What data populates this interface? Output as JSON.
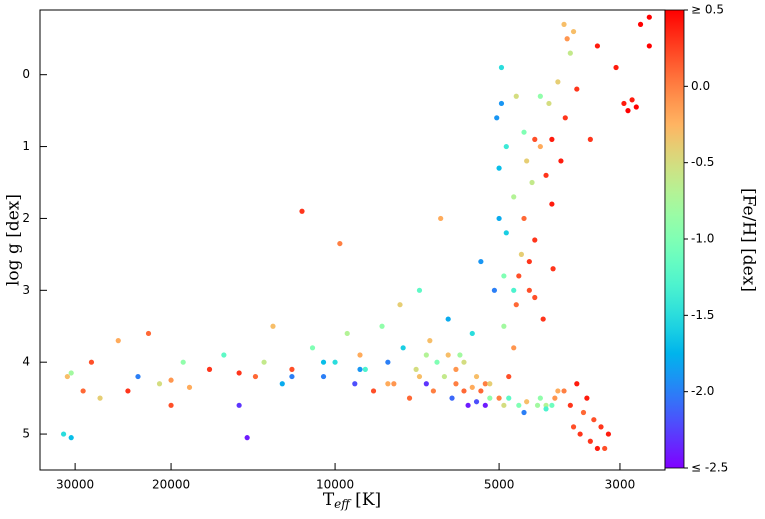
{
  "chart_data": {
    "type": "scatter",
    "xlabel": {
      "base": "T",
      "subscript": "eff",
      "rest": " [K]"
    },
    "ylabel": "log g [dex]",
    "colorbar_label": "[Fe/H] [dex]",
    "xscale": "log",
    "xlim": [
      34800,
      2480
    ],
    "ylim": [
      -0.9,
      5.5
    ],
    "xticks": [
      30000,
      20000,
      10000,
      5000,
      3000
    ],
    "yticks": [
      0,
      1,
      2,
      3,
      4,
      5
    ],
    "colormap": "rainbow",
    "clim": [
      -2.5,
      0.5
    ],
    "cticks": [
      {
        "value": 0.5,
        "label": "≥ 0.5"
      },
      {
        "value": 0,
        "label": "0.0"
      },
      -0.5,
      {
        "value": -1,
        "label": "-1.0"
      },
      -1.5,
      {
        "value": -2,
        "label": "-2.0"
      },
      {
        "value": -2.5,
        "label": "≤ -2.5"
      }
    ],
    "x": [
      31000,
      30500,
      29000,
      31500,
      30500,
      28000,
      27000,
      25000,
      24000,
      23000,
      22000,
      21000,
      20000,
      19000,
      18500,
      17000,
      16000,
      15000,
      14500,
      14000,
      13500,
      13000,
      12500,
      12000,
      11500,
      11000,
      10500,
      10000,
      9800,
      9500,
      9200,
      9000,
      8800,
      8500,
      8200,
      8000,
      7800,
      7600,
      7500,
      7300,
      7100,
      7000,
      6800,
      6700,
      6600,
      6500,
      6400,
      6300,
      6200,
      6100,
      6000,
      5900,
      5800,
      5700,
      5600,
      5500,
      5400,
      5300,
      5200,
      5100,
      5000,
      4950,
      4900,
      4850,
      4800,
      4700,
      4650,
      4600,
      4550,
      4500,
      4450,
      4400,
      4350,
      4300,
      4250,
      4200,
      4150,
      4100,
      4050,
      4000,
      3980,
      3950,
      3900,
      3850,
      3800,
      3780,
      3750,
      3700,
      3650,
      3600,
      3550,
      3500,
      3450,
      3400,
      3350,
      3300,
      3250,
      3200,
      3150,
      3700,
      3650,
      3400,
      3300,
      2950,
      2900,
      2850,
      2800,
      2750,
      2650,
      2650,
      3050,
      3600,
      5600,
      5400,
      5200,
      5000,
      4800,
      6000,
      5800,
      6200,
      4900,
      4700,
      4600,
      4500,
      4450,
      4300,
      4200,
      4100,
      4000,
      4400,
      4300,
      4700,
      4900,
      5000,
      4850,
      4100,
      4000,
      4500,
      5300,
      5500,
      4200,
      3900,
      5050,
      4950,
      3800,
      4650,
      7000,
      8000,
      6800,
      12000,
      10500,
      9000,
      15000,
      20000
    ],
    "y": [
      4.2,
      4.15,
      4.4,
      5.0,
      5.05,
      4.0,
      4.5,
      3.7,
      4.4,
      4.2,
      3.6,
      4.3,
      4.6,
      4.0,
      4.35,
      4.1,
      3.9,
      4.6,
      5.05,
      4.2,
      4.0,
      3.5,
      4.3,
      4.1,
      1.9,
      3.8,
      4.2,
      4.0,
      2.35,
      3.6,
      4.3,
      3.9,
      4.1,
      4.4,
      3.5,
      4.0,
      4.3,
      3.2,
      3.8,
      4.5,
      4.1,
      3.0,
      4.3,
      3.7,
      4.4,
      4.0,
      2.0,
      4.2,
      3.4,
      4.5,
      4.1,
      3.9,
      4.4,
      4.6,
      3.6,
      4.2,
      2.6,
      4.3,
      4.5,
      3.0,
      1.3,
      0.4,
      4.6,
      2.2,
      4.5,
      1.7,
      3.2,
      4.6,
      2.5,
      0.8,
      4.55,
      3.0,
      1.5,
      2.3,
      4.6,
      1.0,
      3.4,
      4.6,
      0.4,
      1.8,
      2.7,
      4.5,
      0.1,
      1.2,
      4.4,
      0.6,
      -0.5,
      4.6,
      4.9,
      4.3,
      5.0,
      4.7,
      4.5,
      5.1,
      4.8,
      5.2,
      4.9,
      5.2,
      5.0,
      -0.3,
      -0.6,
      0.9,
      -0.4,
      0.4,
      0.5,
      0.35,
      0.45,
      -0.7,
      -0.8,
      -0.4,
      -0.1,
      0.2,
      4.35,
      4.4,
      4.3,
      4.5,
      4.2,
      4.3,
      4.0,
      3.9,
      3.5,
      3.8,
      2.8,
      2.0,
      1.2,
      0.9,
      0.3,
      1.4,
      0.9,
      2.6,
      3.1,
      3.0,
      2.8,
      2.0,
      1.0,
      4.65,
      4.6,
      4.7,
      4.6,
      4.55,
      4.5,
      4.4,
      0.6,
      -0.1,
      -0.7,
      0.3,
      4.2,
      4.3,
      3.9,
      4.2,
      4.0,
      4.1,
      4.15,
      4.25
    ],
    "c": [
      -0.3,
      -0.8,
      0.1,
      -1.5,
      -1.7,
      0.2,
      -0.4,
      -0.2,
      0.3,
      -2.0,
      0.1,
      -0.5,
      0.2,
      -0.9,
      -0.2,
      0.3,
      -1.2,
      -2.3,
      -2.4,
      0.1,
      -0.6,
      -0.3,
      -1.8,
      0.2,
      0.3,
      -1.0,
      -2.0,
      -1.5,
      0.0,
      -0.7,
      -2.2,
      -0.2,
      -1.3,
      0.2,
      -0.9,
      -2.0,
      -0.1,
      -0.4,
      -1.6,
      0.1,
      -0.5,
      -1.2,
      -2.3,
      -0.3,
      0.0,
      -1.0,
      -0.2,
      -0.6,
      -1.8,
      -2.1,
      -0.1,
      -0.8,
      0.1,
      -2.4,
      -1.5,
      -0.3,
      -1.9,
      0.0,
      -0.9,
      -2.0,
      -1.7,
      -1.9,
      -0.5,
      -1.6,
      -1.2,
      -0.7,
      0.1,
      -1.0,
      -0.4,
      -1.0,
      -0.3,
      0.2,
      -0.6,
      0.3,
      -0.8,
      -0.2,
      0.3,
      -0.7,
      -0.5,
      0.4,
      0.3,
      -0.1,
      -0.4,
      0.4,
      0.0,
      0.3,
      -0.1,
      0.3,
      0.2,
      0.4,
      0.3,
      0.1,
      0.4,
      0.3,
      0.2,
      0.4,
      0.3,
      0.2,
      0.4,
      -0.6,
      -0.3,
      0.3,
      0.4,
      0.4,
      0.5,
      0.4,
      0.5,
      0.5,
      0.5,
      0.5,
      0.4,
      0.3,
      -0.2,
      0.1,
      -0.4,
      0.0,
      0.2,
      0.0,
      -0.5,
      -0.3,
      -0.8,
      -0.1,
      0.2,
      0.1,
      -0.4,
      0.2,
      -0.9,
      0.3,
      0.4,
      0.3,
      0.2,
      -1.3,
      -1.0,
      -1.8,
      -1.4,
      -1.3,
      -1.1,
      -2.0,
      -2.4,
      -2.2,
      -0.9,
      -0.2,
      -1.9,
      -1.5,
      -0.3,
      -0.5,
      -0.3,
      -0.2,
      -0.7,
      -2.0,
      -1.7,
      -1.9,
      0.3,
      -0.1
    ]
  }
}
